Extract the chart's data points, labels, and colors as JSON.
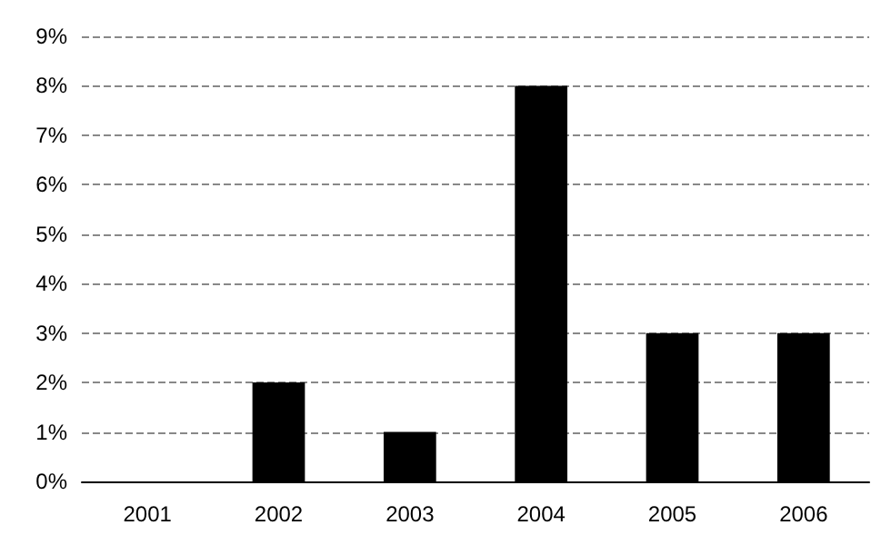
{
  "chart_data": {
    "type": "bar",
    "categories": [
      "2001",
      "2002",
      "2003",
      "2004",
      "2005",
      "2006"
    ],
    "values": [
      0,
      2,
      1,
      8,
      3,
      3
    ],
    "color": "#000000",
    "ylim": [
      0,
      9
    ],
    "yticks": [
      {
        "value": 0,
        "label": "0%"
      },
      {
        "value": 1,
        "label": "1%"
      },
      {
        "value": 2,
        "label": "2%"
      },
      {
        "value": 3,
        "label": "3%"
      },
      {
        "value": 4,
        "label": "4%"
      },
      {
        "value": 5,
        "label": "5%"
      },
      {
        "value": 6,
        "label": "6%"
      },
      {
        "value": 7,
        "label": "7%"
      },
      {
        "value": 8,
        "label": "8%"
      },
      {
        "value": 9,
        "label": "9%"
      }
    ],
    "grid": "y"
  }
}
